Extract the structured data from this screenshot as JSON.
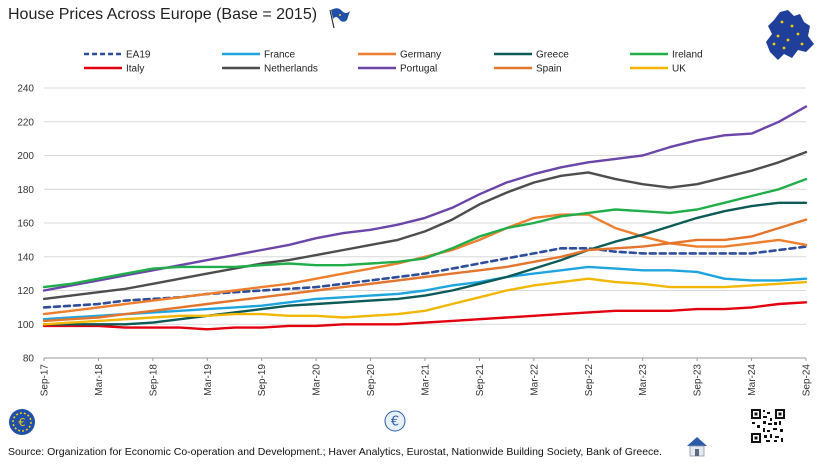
{
  "title": "House Prices Across Europe (Base = 2015)",
  "source": "Source: Organization for Economic Co-operation and Development.; Haver Analytics, Eurostat, Nationwide Building Society, Bank of Greece.",
  "icons": {
    "top_center": "flag-icon",
    "top_right": "eu-map-icon",
    "bottom_left": "euro-coin-icon",
    "bottom_center": "euro-sign-icon",
    "bottom_right_qr": "qr-code-icon",
    "bottom_right_house": "house-icon"
  },
  "chart_data": {
    "type": "line",
    "title": "House Prices Across Europe (Base = 2015)",
    "xlabel": "",
    "ylabel": "",
    "ylim": [
      80,
      240
    ],
    "yticks": [
      80,
      100,
      120,
      140,
      160,
      180,
      200,
      220,
      240
    ],
    "grid": "horizontal",
    "legend": "top",
    "x": [
      "Sep-17",
      "Dec-17",
      "Mar-18",
      "Jun-18",
      "Sep-18",
      "Dec-18",
      "Mar-19",
      "Jun-19",
      "Sep-19",
      "Dec-19",
      "Mar-20",
      "Jun-20",
      "Sep-20",
      "Dec-20",
      "Mar-21",
      "Jun-21",
      "Sep-21",
      "Dec-21",
      "Mar-22",
      "Jun-22",
      "Sep-22",
      "Dec-22",
      "Mar-23",
      "Jun-23",
      "Sep-23",
      "Dec-23",
      "Mar-24",
      "Jun-24",
      "Sep-24"
    ],
    "xtick_labels": [
      "Sep-17",
      "Mar-18",
      "Sep-18",
      "Mar-19",
      "Sep-19",
      "Mar-20",
      "Sep-20",
      "Mar-21",
      "Sep-21",
      "Mar-22",
      "Sep-22",
      "Mar-23",
      "Sep-23",
      "Mar-24",
      "Sep-24"
    ],
    "series": [
      {
        "name": "EA19",
        "color": "#2E4D9A",
        "dashed": true,
        "values": [
          110,
          111,
          112,
          114,
          115,
          116,
          118,
          119,
          120,
          121,
          122,
          124,
          126,
          128,
          130,
          133,
          136,
          139,
          142,
          145,
          145,
          143,
          142,
          142,
          142,
          142,
          142,
          144,
          146
        ]
      },
      {
        "name": "Italy",
        "color": "#E3000F",
        "values": [
          99,
          99,
          99,
          98,
          98,
          98,
          97,
          98,
          98,
          99,
          99,
          100,
          100,
          100,
          101,
          102,
          103,
          104,
          105,
          106,
          107,
          108,
          108,
          108,
          109,
          109,
          110,
          112,
          113
        ]
      },
      {
        "name": "France",
        "color": "#1EA5DE",
        "values": [
          103,
          104,
          105,
          106,
          107,
          108,
          109,
          110,
          111,
          113,
          115,
          116,
          117,
          118,
          120,
          123,
          125,
          128,
          130,
          132,
          134,
          133,
          132,
          132,
          131,
          127,
          126,
          126,
          127
        ]
      },
      {
        "name": "Netherlands",
        "color": "#4D4D4D",
        "values": [
          115,
          117,
          119,
          121,
          124,
          127,
          130,
          133,
          136,
          138,
          141,
          144,
          147,
          150,
          155,
          162,
          171,
          178,
          184,
          188,
          190,
          186,
          183,
          181,
          183,
          187,
          191,
          196,
          202
        ]
      },
      {
        "name": "Germany",
        "color": "#EE7F2D",
        "values": [
          106,
          108,
          110,
          112,
          114,
          116,
          118,
          120,
          122,
          124,
          127,
          130,
          133,
          136,
          140,
          144,
          150,
          157,
          163,
          165,
          165,
          157,
          152,
          148,
          146,
          146,
          148,
          150,
          147
        ]
      },
      {
        "name": "Portugal",
        "color": "#6C45A8",
        "values": [
          120,
          123,
          126,
          129,
          132,
          135,
          138,
          141,
          144,
          147,
          151,
          154,
          156,
          159,
          163,
          169,
          177,
          184,
          189,
          193,
          196,
          198,
          200,
          205,
          209,
          212,
          213,
          220,
          229
        ]
      },
      {
        "name": "Greece",
        "color": "#0C5B57",
        "values": [
          100,
          100,
          100,
          100,
          101,
          103,
          105,
          107,
          109,
          111,
          112,
          113,
          114,
          115,
          117,
          120,
          124,
          128,
          133,
          138,
          144,
          149,
          153,
          158,
          163,
          167,
          170,
          172,
          172
        ]
      },
      {
        "name": "Spain",
        "color": "#E4752D",
        "values": [
          102,
          103,
          104,
          106,
          108,
          110,
          112,
          114,
          116,
          118,
          120,
          122,
          124,
          126,
          128,
          130,
          132,
          134,
          137,
          140,
          144,
          145,
          146,
          148,
          150,
          150,
          152,
          157,
          162
        ]
      },
      {
        "name": "Ireland",
        "color": "#21AE4A",
        "values": [
          122,
          124,
          127,
          130,
          133,
          134,
          134,
          134,
          135,
          136,
          135,
          135,
          136,
          137,
          139,
          145,
          152,
          157,
          160,
          164,
          166,
          168,
          167,
          166,
          168,
          172,
          176,
          180,
          186
        ]
      },
      {
        "name": "UK",
        "color": "#F2B705",
        "values": [
          100,
          101,
          102,
          103,
          104,
          105,
          105,
          106,
          106,
          105,
          105,
          104,
          105,
          106,
          108,
          112,
          116,
          120,
          123,
          125,
          127,
          125,
          124,
          122,
          122,
          122,
          123,
          124,
          125
        ]
      }
    ]
  }
}
